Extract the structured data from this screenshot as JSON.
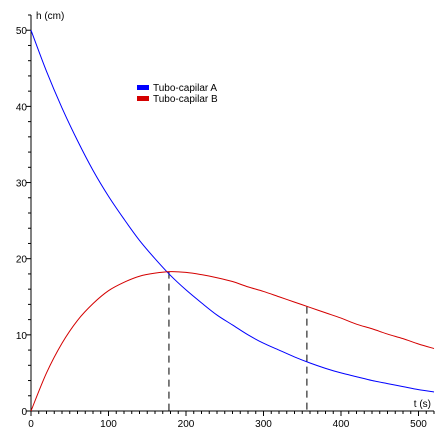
{
  "chart_data": {
    "type": "line",
    "title": "",
    "ylabel": "h (cm)",
    "xlabel": "t (s)",
    "xlim": [
      0,
      520
    ],
    "ylim": [
      0,
      52
    ],
    "x_ticks": [
      0,
      100,
      200,
      300,
      400,
      500
    ],
    "y_ticks": [
      0,
      10,
      20,
      30,
      40,
      50
    ],
    "grid": false,
    "legend_position": "top-center",
    "x": [
      0,
      20,
      40,
      60,
      80,
      100,
      120,
      140,
      160,
      180,
      200,
      220,
      240,
      260,
      280,
      300,
      320,
      340,
      360,
      380,
      400,
      420,
      440,
      460,
      480,
      500,
      520
    ],
    "series": [
      {
        "name": "Tubo-capilar A",
        "color": "#0000ff",
        "values": [
          50.0,
          44.6,
          39.8,
          35.5,
          31.6,
          28.2,
          25.2,
          22.4,
          20.0,
          17.8,
          15.9,
          14.2,
          12.6,
          11.3,
          10.0,
          8.9,
          8.0,
          7.1,
          6.3,
          5.6,
          5.0,
          4.5,
          4.0,
          3.6,
          3.2,
          2.8,
          2.5
        ]
      },
      {
        "name": "Tubo-capilar B",
        "color": "#d40000",
        "values": [
          0.0,
          5.0,
          8.9,
          11.9,
          14.1,
          15.8,
          16.9,
          17.7,
          18.1,
          18.3,
          18.2,
          17.9,
          17.5,
          17.0,
          16.3,
          15.7,
          15.0,
          14.3,
          13.6,
          12.9,
          12.2,
          11.4,
          10.8,
          10.1,
          9.5,
          8.8,
          8.2
        ]
      }
    ],
    "annotations": [
      {
        "type": "vertical-dashed",
        "x": 178,
        "y_top": 18.3
      },
      {
        "type": "vertical-dashed",
        "x": 356,
        "y_top": 13.7
      }
    ]
  }
}
